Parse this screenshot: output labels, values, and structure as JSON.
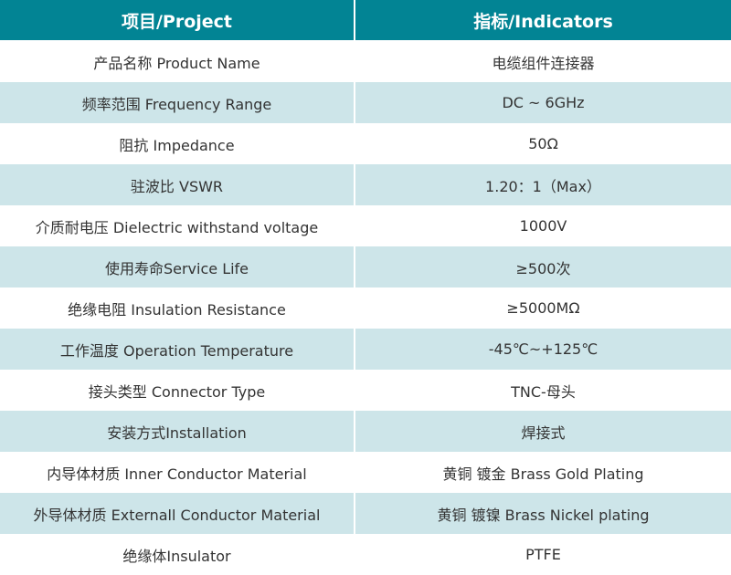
{
  "header": {
    "project": "项目/Project",
    "indicators": "指标/Indicators"
  },
  "colors": {
    "header_bg": "#028494",
    "alt_row_bg": "#cde5e9"
  },
  "rows": [
    {
      "project": "产品名称 Product Name",
      "indicator": "电缆组件连接器"
    },
    {
      "project": "频率范围 Frequency Range",
      "indicator": "DC ~ 6GHz"
    },
    {
      "project": "阻抗 Impedance",
      "indicator": "50Ω"
    },
    {
      "project": "驻波比 VSWR",
      "indicator": "1.20：1（Max）"
    },
    {
      "project": "介质耐电压 Dielectric withstand voltage",
      "indicator": "1000V"
    },
    {
      "project": "使用寿命Service Life",
      "indicator": "≥500次"
    },
    {
      "project": "绝缘电阻 Insulation Resistance",
      "indicator": "≥5000MΩ"
    },
    {
      "project": "工作温度 Operation Temperature",
      "indicator": "-45℃~+125℃"
    },
    {
      "project": "接头类型  Connector Type",
      "indicator": "TNC-母头"
    },
    {
      "project": "安装方式Installation",
      "indicator": "焊接式"
    },
    {
      "project": "内导体材质 Inner Conductor Material",
      "indicator": "黄铜 镀金 Brass Gold Plating"
    },
    {
      "project": "外导体材质 Externall Conductor Material",
      "indicator": "黄铜 镀镍 Brass Nickel plating"
    },
    {
      "project": "绝缘体Insulator",
      "indicator": "PTFE"
    }
  ]
}
